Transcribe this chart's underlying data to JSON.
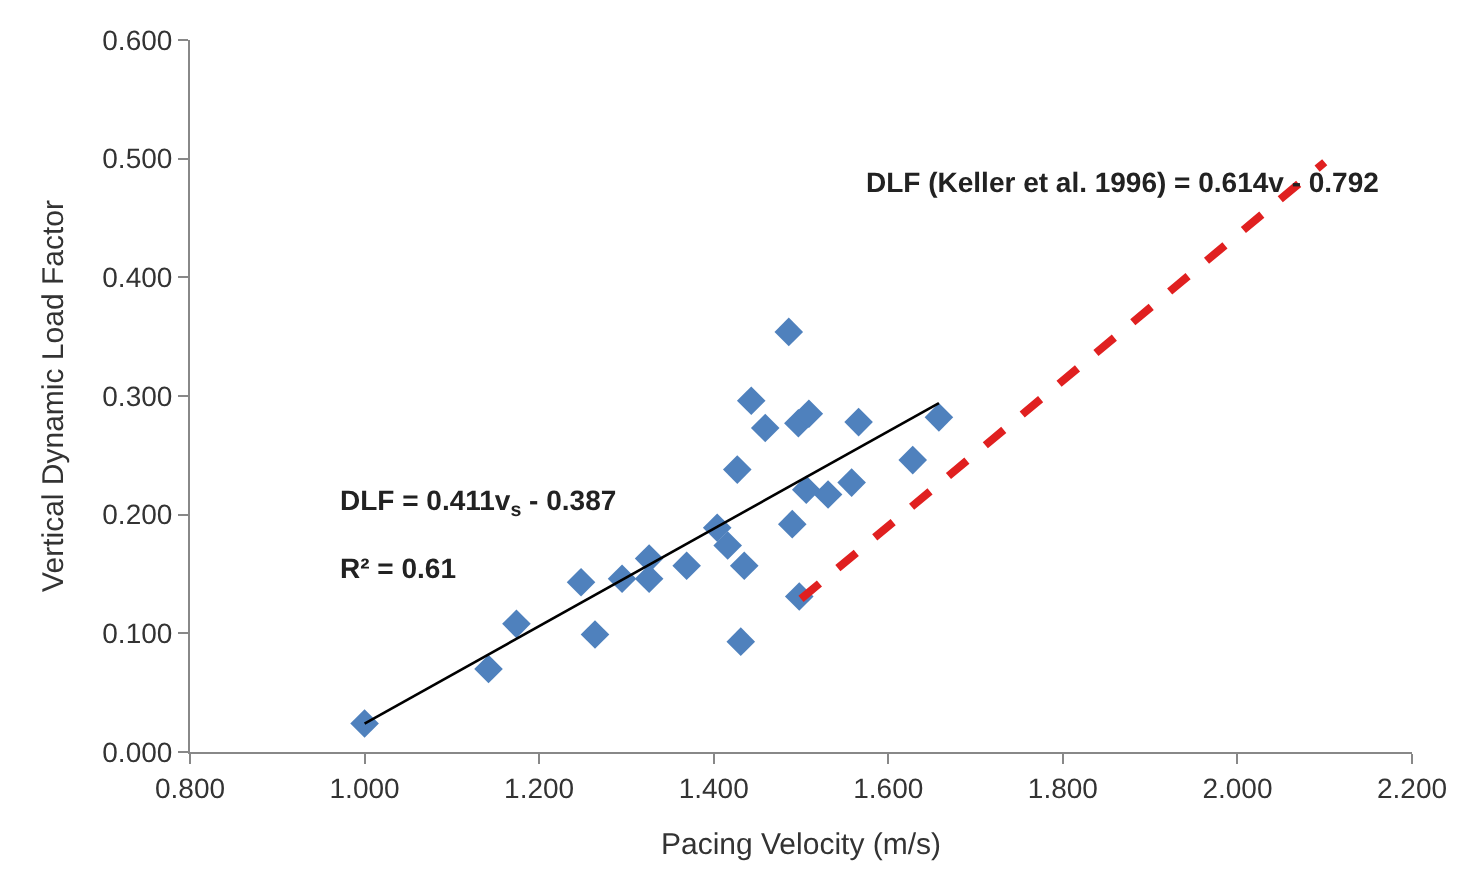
{
  "chart_data": {
    "type": "scatter",
    "xlabel": "Pacing Velocity (m/s)",
    "ylabel": "Vertical Dynamic Load Factor",
    "xlim": [
      0.8,
      2.2
    ],
    "ylim": [
      0,
      0.6
    ],
    "xticks": [
      {
        "value": 0.8,
        "label": "0.800"
      },
      {
        "value": 1.0,
        "label": "1.000"
      },
      {
        "value": 1.2,
        "label": "1.200"
      },
      {
        "value": 1.4,
        "label": "1.400"
      },
      {
        "value": 1.6,
        "label": "1.600"
      },
      {
        "value": 1.8,
        "label": "1.800"
      },
      {
        "value": 2.0,
        "label": "2.000"
      },
      {
        "value": 2.2,
        "label": "2.200"
      }
    ],
    "yticks": [
      {
        "value": 0,
        "label": "0.000"
      },
      {
        "value": 0.1,
        "label": "0.100"
      },
      {
        "value": 0.2,
        "label": "0.200"
      },
      {
        "value": 0.3,
        "label": "0.300"
      },
      {
        "value": 0.4,
        "label": "0.400"
      },
      {
        "value": 0.5,
        "label": "0.500"
      },
      {
        "value": 0.6,
        "label": "0.600"
      }
    ],
    "marker": "diamond",
    "series": [
      {
        "color": "#4f81bd",
        "x": [
          1.0,
          1.142,
          1.174,
          1.248,
          1.264,
          1.295,
          1.326,
          1.326,
          1.369,
          1.404,
          1.416,
          1.435,
          1.431,
          1.427,
          1.443,
          1.459,
          1.486,
          1.49,
          1.498,
          1.497,
          1.509,
          1.566,
          1.658,
          1.628,
          1.558,
          1.531,
          1.506
        ],
        "values": [
          0.024,
          0.07,
          0.108,
          0.143,
          0.099,
          0.146,
          0.163,
          0.146,
          0.157,
          0.189,
          0.174,
          0.157,
          0.093,
          0.238,
          0.296,
          0.273,
          0.354,
          0.192,
          0.131,
          0.277,
          0.285,
          0.278,
          0.282,
          0.246,
          0.227,
          0.217,
          0.221
        ]
      },
      {
        "type": "line",
        "color": "#000000",
        "line_style": "solid",
        "marker": "none",
        "x": [
          1.0,
          1.658
        ],
        "values": [
          0.024,
          0.294
        ]
      },
      {
        "type": "line",
        "color": "#e02020",
        "line_style": "dashed",
        "marker": "none",
        "x": [
          1.5,
          2.1
        ],
        "values": [
          0.129,
          0.497
        ]
      }
    ],
    "annotations": [
      "DLF (Keller et al. 1996) = 0.614v - 0.792",
      "DLF = 0.411v$_{s}$ - 0.387",
      "R² = 0.61"
    ]
  }
}
